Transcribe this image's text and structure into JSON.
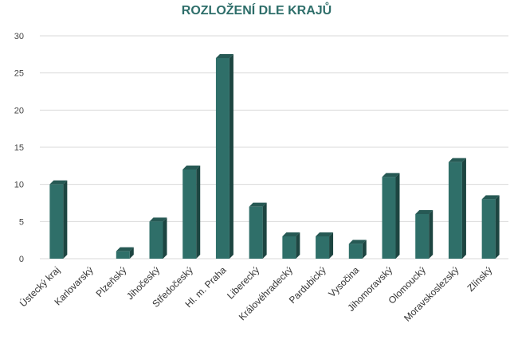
{
  "chart_data": {
    "type": "bar",
    "title": "ROZLOŽENÍ DLE KRAJŮ",
    "xlabel": "",
    "ylabel": "",
    "ylim": [
      0,
      30
    ],
    "yticks": [
      "0",
      "5",
      "10",
      "15",
      "20",
      "25",
      "30"
    ],
    "grid": true,
    "legend": "none",
    "bar_color": "#2f6f69",
    "categories": [
      "Ústecký kraj",
      "Karlovarský",
      "Plzeňský",
      "Jihočeský",
      "Středočeský",
      "Hl. m. Praha",
      "Liberecký",
      "Královéhradecký",
      "Pardubický",
      "Vysočina",
      "Jihomoravský",
      "Olomoucký",
      "Moravskoslezský",
      "Zlínský"
    ],
    "values": [
      10,
      0,
      1,
      5,
      12,
      27,
      7,
      3,
      3,
      2,
      11,
      6,
      13,
      8
    ]
  }
}
